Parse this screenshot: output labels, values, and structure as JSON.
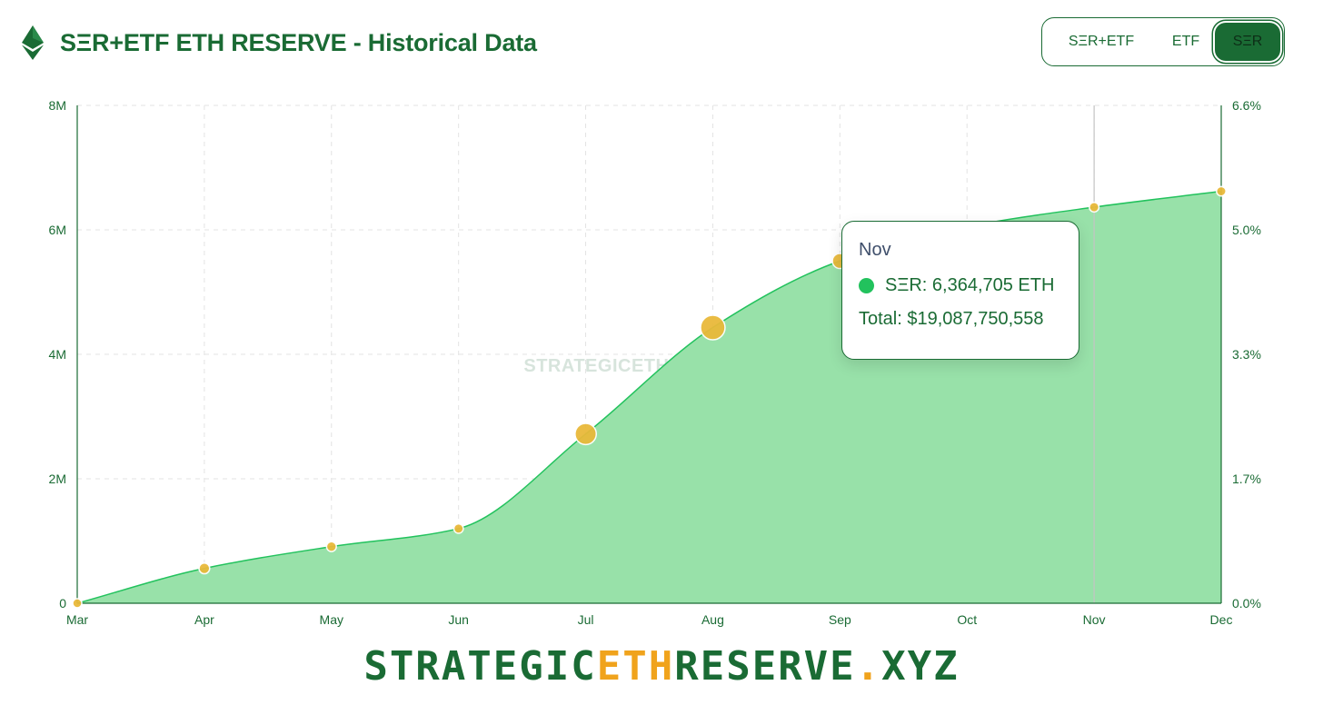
{
  "header": {
    "title": "SΞR+ETF ETH RESERVE - Historical Data",
    "logo_icon": "ethereum-icon"
  },
  "toggle": {
    "options": [
      "SΞR+ETF",
      "ETF",
      "SΞR"
    ],
    "selected": "SΞR"
  },
  "watermark": "STRATEGICETHRESERVE.XYZ",
  "footer": {
    "part1": "STRATEGIC",
    "part2": "ETH",
    "part3": "RESERVE",
    "part4": ".",
    "part5": "XYZ"
  },
  "tooltip": {
    "month": "Nov",
    "series_line": "SΞR: 6,364,705 ETH",
    "total_line": "Total: $19,087,750,558"
  },
  "colors": {
    "brand": "#1a6b34",
    "area_fill": "#98e1a9",
    "area_stroke": "#22c25d",
    "point": "#e9b93a",
    "accent": "#f0a31c"
  },
  "chart_data": {
    "type": "area",
    "categories": [
      "Mar",
      "Apr",
      "May",
      "Jun",
      "Jul",
      "Aug",
      "Sep",
      "Oct",
      "Nov",
      "Dec"
    ],
    "series": [
      {
        "name": "SΞR",
        "values": [
          0,
          560000,
          910000,
          1200000,
          2720000,
          4430000,
          5500000,
          6050000,
          6364705,
          6620000
        ]
      }
    ],
    "y_left": {
      "range": [
        0,
        8000000
      ],
      "ticks": [
        0,
        2000000,
        4000000,
        6000000,
        8000000
      ],
      "tick_labels": [
        "0",
        "2M",
        "4M",
        "6M",
        "8M"
      ]
    },
    "y_right": {
      "tick_labels": [
        "0.0%",
        "1.7%",
        "3.3%",
        "5.0%",
        "6.6%"
      ]
    },
    "hovered_index": 8,
    "grid": true,
    "grid_style": "dashed"
  }
}
